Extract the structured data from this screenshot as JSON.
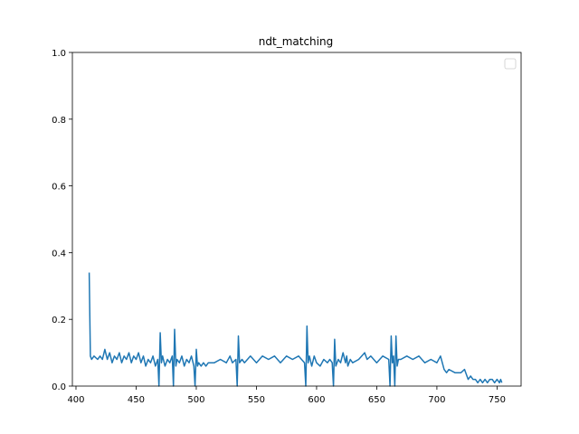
{
  "chart_data": {
    "type": "line",
    "title": "ndt_matching",
    "xlabel": "",
    "ylabel": "",
    "xlim": [
      397,
      770
    ],
    "ylim": [
      0.0,
      1.0
    ],
    "x_ticks": [
      400,
      450,
      500,
      550,
      600,
      650,
      700,
      750
    ],
    "y_ticks": [
      0.0,
      0.2,
      0.4,
      0.6,
      0.8,
      1.0
    ],
    "x_tick_labels": [
      "400",
      "450",
      "500",
      "550",
      "600",
      "650",
      "700",
      "750"
    ],
    "y_tick_labels": [
      "0.0",
      "0.2",
      "0.4",
      "0.6",
      "0.8",
      "1.0"
    ],
    "grid": false,
    "legend": {
      "placement": "top-right",
      "entries": []
    },
    "series": [
      {
        "color": "#1f77b4",
        "x": [
          411,
          412,
          413,
          415,
          418,
          420,
          422,
          424,
          426,
          428,
          430,
          432,
          434,
          436,
          438,
          440,
          442,
          444,
          446,
          448,
          450,
          452,
          454,
          456,
          458,
          460,
          462,
          464,
          466,
          468,
          469,
          470,
          471,
          472,
          474,
          476,
          478,
          480,
          481,
          482,
          483,
          484,
          486,
          488,
          490,
          492,
          494,
          496,
          498,
          499,
          500,
          501,
          502,
          504,
          506,
          508,
          510,
          515,
          520,
          525,
          528,
          530,
          533,
          534,
          535,
          536,
          538,
          540,
          545,
          550,
          555,
          560,
          565,
          570,
          575,
          580,
          585,
          590,
          591,
          592,
          593,
          594,
          596,
          598,
          600,
          603,
          606,
          609,
          611,
          613,
          614,
          615,
          616,
          618,
          620,
          622,
          624,
          625,
          626,
          628,
          630,
          635,
          640,
          642,
          645,
          650,
          655,
          660,
          661,
          662,
          663,
          664,
          665,
          666,
          667,
          668,
          670,
          675,
          680,
          685,
          690,
          695,
          700,
          703,
          706,
          708,
          710,
          715,
          720,
          723,
          724,
          726,
          728,
          730,
          732,
          734,
          736,
          738,
          740,
          742,
          744,
          746,
          748,
          750,
          752,
          753,
          754
        ],
        "y": [
          0.34,
          0.09,
          0.08,
          0.09,
          0.08,
          0.09,
          0.08,
          0.11,
          0.08,
          0.1,
          0.07,
          0.09,
          0.08,
          0.1,
          0.07,
          0.09,
          0.08,
          0.1,
          0.07,
          0.09,
          0.08,
          0.1,
          0.07,
          0.09,
          0.06,
          0.08,
          0.07,
          0.09,
          0.06,
          0.08,
          0.0,
          0.16,
          0.07,
          0.09,
          0.06,
          0.08,
          0.07,
          0.09,
          0.0,
          0.17,
          0.06,
          0.08,
          0.07,
          0.09,
          0.06,
          0.08,
          0.07,
          0.09,
          0.06,
          0.0,
          0.11,
          0.06,
          0.07,
          0.06,
          0.07,
          0.06,
          0.07,
          0.07,
          0.08,
          0.07,
          0.09,
          0.07,
          0.08,
          0.0,
          0.15,
          0.07,
          0.08,
          0.07,
          0.09,
          0.07,
          0.09,
          0.08,
          0.09,
          0.07,
          0.09,
          0.08,
          0.09,
          0.07,
          0.0,
          0.18,
          0.07,
          0.09,
          0.06,
          0.09,
          0.07,
          0.06,
          0.08,
          0.07,
          0.08,
          0.07,
          0.0,
          0.14,
          0.06,
          0.08,
          0.07,
          0.1,
          0.07,
          0.09,
          0.06,
          0.08,
          0.07,
          0.08,
          0.1,
          0.08,
          0.09,
          0.07,
          0.09,
          0.08,
          0.0,
          0.15,
          0.07,
          0.09,
          0.0,
          0.15,
          0.06,
          0.08,
          0.08,
          0.09,
          0.08,
          0.09,
          0.07,
          0.08,
          0.07,
          0.09,
          0.05,
          0.04,
          0.05,
          0.04,
          0.04,
          0.05,
          0.04,
          0.02,
          0.03,
          0.02,
          0.02,
          0.01,
          0.02,
          0.01,
          0.02,
          0.01,
          0.02,
          0.02,
          0.01,
          0.02,
          0.01,
          0.02,
          0.01
        ]
      }
    ]
  }
}
